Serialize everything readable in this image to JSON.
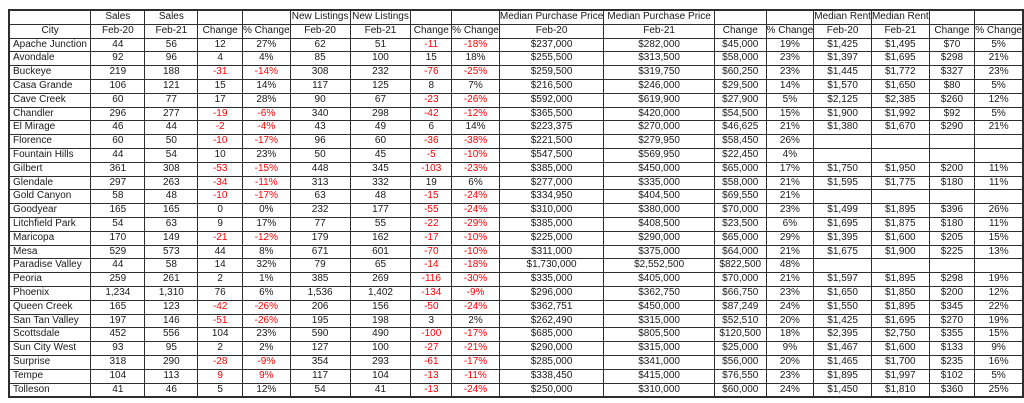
{
  "colors": {
    "negative": "#ff0000",
    "text": "#1a1a1a",
    "border": "#2e2e2e",
    "background": "#ffffff"
  },
  "chart_data": {
    "type": "table",
    "title": "City housing market comparison Feb-20 vs Feb-21 (Sales, New Listings, Median Purchase Price, Median Rent)",
    "column_groups": [
      "",
      "Sales",
      "Sales",
      "",
      "",
      "New Listings",
      "New Listings",
      "",
      "",
      "Median Purchase Price",
      "Median Purchase Price",
      "",
      "",
      "Median Rent",
      "Median Rent",
      "",
      ""
    ],
    "columns": [
      "City",
      "Feb-20",
      "Feb-21",
      "Change",
      "% Change",
      "Feb-20",
      "Feb-21",
      "Change",
      "% Change",
      "Feb-20",
      "Feb-21",
      "Change",
      "% Change",
      "Feb-20",
      "Feb-21",
      "Change",
      "% Change"
    ],
    "rows": [
      {
        "city": "Apache Junction",
        "cells": [
          "44",
          "56",
          "12",
          "27%",
          "62",
          "51",
          "-11",
          "-18%",
          "$237,000",
          "$282,000",
          "$45,000",
          "19%",
          "$1,425",
          "$1,495",
          "$70",
          "5%"
        ],
        "red": [
          6,
          7
        ]
      },
      {
        "city": "Avondale",
        "cells": [
          "92",
          "96",
          "4",
          "4%",
          "85",
          "100",
          "15",
          "18%",
          "$255,500",
          "$313,500",
          "$58,000",
          "23%",
          "$1,397",
          "$1,695",
          "$298",
          "21%"
        ],
        "red": []
      },
      {
        "city": "Buckeye",
        "cells": [
          "219",
          "188",
          "-31",
          "-14%",
          "308",
          "232",
          "-76",
          "-25%",
          "$259,500",
          "$319,750",
          "$60,250",
          "23%",
          "$1,445",
          "$1,772",
          "$327",
          "23%"
        ],
        "red": [
          2,
          3,
          6,
          7
        ]
      },
      {
        "city": "Casa Grande",
        "cells": [
          "106",
          "121",
          "15",
          "14%",
          "117",
          "125",
          "8",
          "7%",
          "$216,500",
          "$246,000",
          "$29,500",
          "14%",
          "$1,570",
          "$1,650",
          "$80",
          "5%"
        ],
        "red": []
      },
      {
        "city": "Cave Creek",
        "cells": [
          "60",
          "77",
          "17",
          "28%",
          "90",
          "67",
          "-23",
          "-26%",
          "$592,000",
          "$619,900",
          "$27,900",
          "5%",
          "$2,125",
          "$2,385",
          "$260",
          "12%"
        ],
        "red": [
          6,
          7
        ]
      },
      {
        "city": "Chandler",
        "cells": [
          "296",
          "277",
          "-19",
          "-6%",
          "340",
          "298",
          "-42",
          "-12%",
          "$365,500",
          "$420,000",
          "$54,500",
          "15%",
          "$1,900",
          "$1,992",
          "$92",
          "5%"
        ],
        "red": [
          2,
          3,
          6,
          7
        ]
      },
      {
        "city": "El Mirage",
        "cells": [
          "46",
          "44",
          "-2",
          "-4%",
          "43",
          "49",
          "6",
          "14%",
          "$223,375",
          "$270,000",
          "$46,625",
          "21%",
          "$1,380",
          "$1,670",
          "$290",
          "21%"
        ],
        "red": [
          2,
          3
        ]
      },
      {
        "city": "Florence",
        "cells": [
          "60",
          "50",
          "-10",
          "-17%",
          "96",
          "60",
          "-36",
          "-38%",
          "$221,500",
          "$279,950",
          "$58,450",
          "26%",
          "",
          "",
          "",
          ""
        ],
        "red": [
          2,
          3,
          6,
          7
        ]
      },
      {
        "city": "Fountain Hills",
        "cells": [
          "44",
          "54",
          "10",
          "23%",
          "50",
          "45",
          "-5",
          "-10%",
          "$547,500",
          "$569,950",
          "$22,450",
          "4%",
          "",
          "",
          "",
          ""
        ],
        "red": [
          6,
          7
        ]
      },
      {
        "city": "Gilbert",
        "cells": [
          "361",
          "308",
          "-53",
          "-15%",
          "448",
          "345",
          "-103",
          "-23%",
          "$385,000",
          "$450,000",
          "$65,000",
          "17%",
          "$1,750",
          "$1,950",
          "$200",
          "11%"
        ],
        "red": [
          2,
          3,
          6,
          7
        ]
      },
      {
        "city": "Glendale",
        "cells": [
          "297",
          "263",
          "-34",
          "-11%",
          "313",
          "332",
          "19",
          "6%",
          "$277,000",
          "$335,000",
          "$58,000",
          "21%",
          "$1,595",
          "$1,775",
          "$180",
          "11%"
        ],
        "red": [
          2,
          3
        ]
      },
      {
        "city": "Gold Canyon",
        "cells": [
          "58",
          "48",
          "-10",
          "-17%",
          "63",
          "48",
          "-15",
          "-24%",
          "$334,950",
          "$404,500",
          "$69,550",
          "21%",
          "",
          "",
          "",
          ""
        ],
        "red": [
          2,
          3,
          6,
          7
        ]
      },
      {
        "city": "Goodyear",
        "cells": [
          "165",
          "165",
          "0",
          "0%",
          "232",
          "177",
          "-55",
          "-24%",
          "$310,000",
          "$380,000",
          "$70,000",
          "23%",
          "$1,499",
          "$1,895",
          "$396",
          "26%"
        ],
        "red": [
          6,
          7
        ]
      },
      {
        "city": "Litchfield Park",
        "cells": [
          "54",
          "63",
          "9",
          "17%",
          "77",
          "55",
          "-22",
          "-29%",
          "$385,000",
          "$408,500",
          "$23,500",
          "6%",
          "$1,695",
          "$1,875",
          "$180",
          "11%"
        ],
        "red": [
          6,
          7
        ]
      },
      {
        "city": "Maricopa",
        "cells": [
          "170",
          "149",
          "-21",
          "-12%",
          "179",
          "162",
          "-17",
          "-10%",
          "$225,000",
          "$290,000",
          "$65,000",
          "29%",
          "$1,395",
          "$1,600",
          "$205",
          "15%"
        ],
        "red": [
          2,
          3,
          6,
          7
        ]
      },
      {
        "city": "Mesa",
        "cells": [
          "529",
          "573",
          "44",
          "8%",
          "671",
          "601",
          "-70",
          "-10%",
          "$311,000",
          "$375,000",
          "$64,000",
          "21%",
          "$1,675",
          "$1,900",
          "$225",
          "13%"
        ],
        "red": [
          6,
          7
        ]
      },
      {
        "city": "Paradise Valley",
        "cells": [
          "44",
          "58",
          "14",
          "32%",
          "79",
          "65",
          "-14",
          "-18%",
          "$1,730,000",
          "$2,552,500",
          "$822,500",
          "48%",
          "",
          "",
          "",
          ""
        ],
        "red": [
          6,
          7
        ]
      },
      {
        "city": "Peoria",
        "cells": [
          "259",
          "261",
          "2",
          "1%",
          "385",
          "269",
          "-116",
          "-30%",
          "$335,000",
          "$405,000",
          "$70,000",
          "21%",
          "$1,597",
          "$1,895",
          "$298",
          "19%"
        ],
        "red": [
          6,
          7
        ]
      },
      {
        "city": "Phoenix",
        "cells": [
          "1,234",
          "1,310",
          "76",
          "6%",
          "1,536",
          "1,402",
          "-134",
          "-9%",
          "$296,000",
          "$362,750",
          "$66,750",
          "23%",
          "$1,650",
          "$1,850",
          "$200",
          "12%"
        ],
        "red": [
          6,
          7
        ]
      },
      {
        "city": "Queen Creek",
        "cells": [
          "165",
          "123",
          "-42",
          "-26%",
          "206",
          "156",
          "-50",
          "-24%",
          "$362,751",
          "$450,000",
          "$87,249",
          "24%",
          "$1,550",
          "$1,895",
          "$345",
          "22%"
        ],
        "red": [
          2,
          3,
          6,
          7
        ]
      },
      {
        "city": "San Tan Valley",
        "cells": [
          "197",
          "146",
          "-51",
          "-26%",
          "195",
          "198",
          "3",
          "2%",
          "$262,490",
          "$315,000",
          "$52,510",
          "20%",
          "$1,425",
          "$1,695",
          "$270",
          "19%"
        ],
        "red": [
          2,
          3
        ]
      },
      {
        "city": "Scottsdale",
        "cells": [
          "452",
          "556",
          "104",
          "23%",
          "590",
          "490",
          "-100",
          "-17%",
          "$685,000",
          "$805,500",
          "$120,500",
          "18%",
          "$2,395",
          "$2,750",
          "$355",
          "15%"
        ],
        "red": [
          6,
          7
        ]
      },
      {
        "city": "Sun City West",
        "cells": [
          "93",
          "95",
          "2",
          "2%",
          "127",
          "100",
          "-27",
          "-21%",
          "$290,000",
          "$315,000",
          "$25,000",
          "9%",
          "$1,467",
          "$1,600",
          "$133",
          "9%"
        ],
        "red": [
          6,
          7
        ]
      },
      {
        "city": "Surprise",
        "cells": [
          "318",
          "290",
          "-28",
          "-9%",
          "354",
          "293",
          "-61",
          "-17%",
          "$285,000",
          "$341,000",
          "$56,000",
          "20%",
          "$1,465",
          "$1,700",
          "$235",
          "16%"
        ],
        "red": [
          2,
          3,
          6,
          7
        ]
      },
      {
        "city": "Tempe",
        "cells": [
          "104",
          "113",
          "9",
          "9%",
          "117",
          "104",
          "-13",
          "-11%",
          "$338,450",
          "$415,000",
          "$76,550",
          "23%",
          "$1,895",
          "$1,997",
          "$102",
          "5%"
        ],
        "red": [
          2,
          3,
          6,
          7
        ]
      },
      {
        "city": "Tolleson",
        "cells": [
          "41",
          "46",
          "5",
          "12%",
          "54",
          "41",
          "-13",
          "-24%",
          "$250,000",
          "$310,000",
          "$60,000",
          "24%",
          "$1,450",
          "$1,810",
          "$360",
          "25%"
        ],
        "red": [
          6,
          7
        ]
      }
    ]
  }
}
